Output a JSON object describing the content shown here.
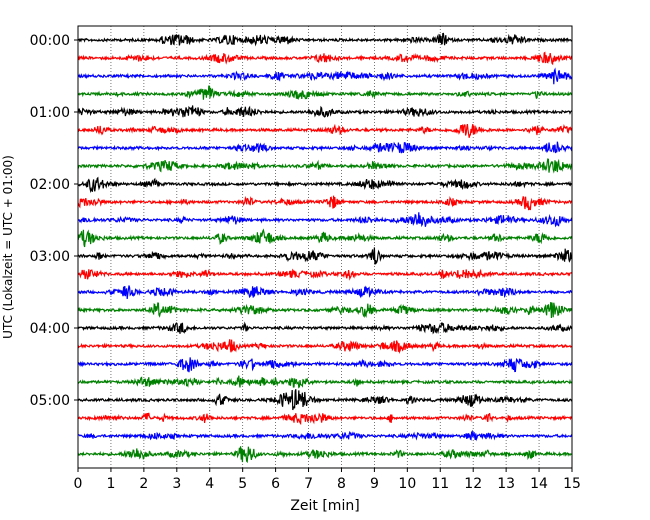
{
  "chart_data": {
    "type": "line",
    "title": "",
    "xlabel": "Zeit  [min]",
    "ylabel": "UTC (Lokalzeit = UTC + 01:00)",
    "xlim": [
      0,
      15
    ],
    "x_ticks": [
      "0",
      "1",
      "2",
      "3",
      "4",
      "5",
      "6",
      "7",
      "8",
      "9",
      "10",
      "11",
      "12",
      "13",
      "14",
      "15"
    ],
    "y_tick_labels": [
      {
        "row": 0,
        "label": "00:00"
      },
      {
        "row": 4,
        "label": "01:00"
      },
      {
        "row": 8,
        "label": "02:00"
      },
      {
        "row": 12,
        "label": "03:00"
      },
      {
        "row": 16,
        "label": "04:00"
      },
      {
        "row": 20,
        "label": "05:00"
      }
    ],
    "grid": "vertical dotted at each minute",
    "trace_colors": [
      "#000000",
      "#ff0000",
      "#0000ff",
      "#008000"
    ],
    "traces": [
      {
        "start": "00:00",
        "color": "#000000"
      },
      {
        "start": "00:15",
        "color": "#ff0000"
      },
      {
        "start": "00:30",
        "color": "#0000ff"
      },
      {
        "start": "00:45",
        "color": "#008000"
      },
      {
        "start": "01:00",
        "color": "#000000"
      },
      {
        "start": "01:15",
        "color": "#ff0000"
      },
      {
        "start": "01:30",
        "color": "#0000ff"
      },
      {
        "start": "01:45",
        "color": "#008000"
      },
      {
        "start": "02:00",
        "color": "#000000"
      },
      {
        "start": "02:15",
        "color": "#ff0000"
      },
      {
        "start": "02:30",
        "color": "#0000ff"
      },
      {
        "start": "02:45",
        "color": "#008000"
      },
      {
        "start": "03:00",
        "color": "#000000"
      },
      {
        "start": "03:15",
        "color": "#ff0000"
      },
      {
        "start": "03:30",
        "color": "#0000ff"
      },
      {
        "start": "03:45",
        "color": "#008000"
      },
      {
        "start": "04:00",
        "color": "#000000"
      },
      {
        "start": "04:15",
        "color": "#ff0000"
      },
      {
        "start": "04:30",
        "color": "#0000ff"
      },
      {
        "start": "04:45",
        "color": "#008000"
      },
      {
        "start": "05:00",
        "color": "#000000"
      },
      {
        "start": "05:15",
        "color": "#ff0000"
      },
      {
        "start": "05:30",
        "color": "#0000ff"
      },
      {
        "start": "05:45",
        "color": "#008000"
      }
    ]
  }
}
